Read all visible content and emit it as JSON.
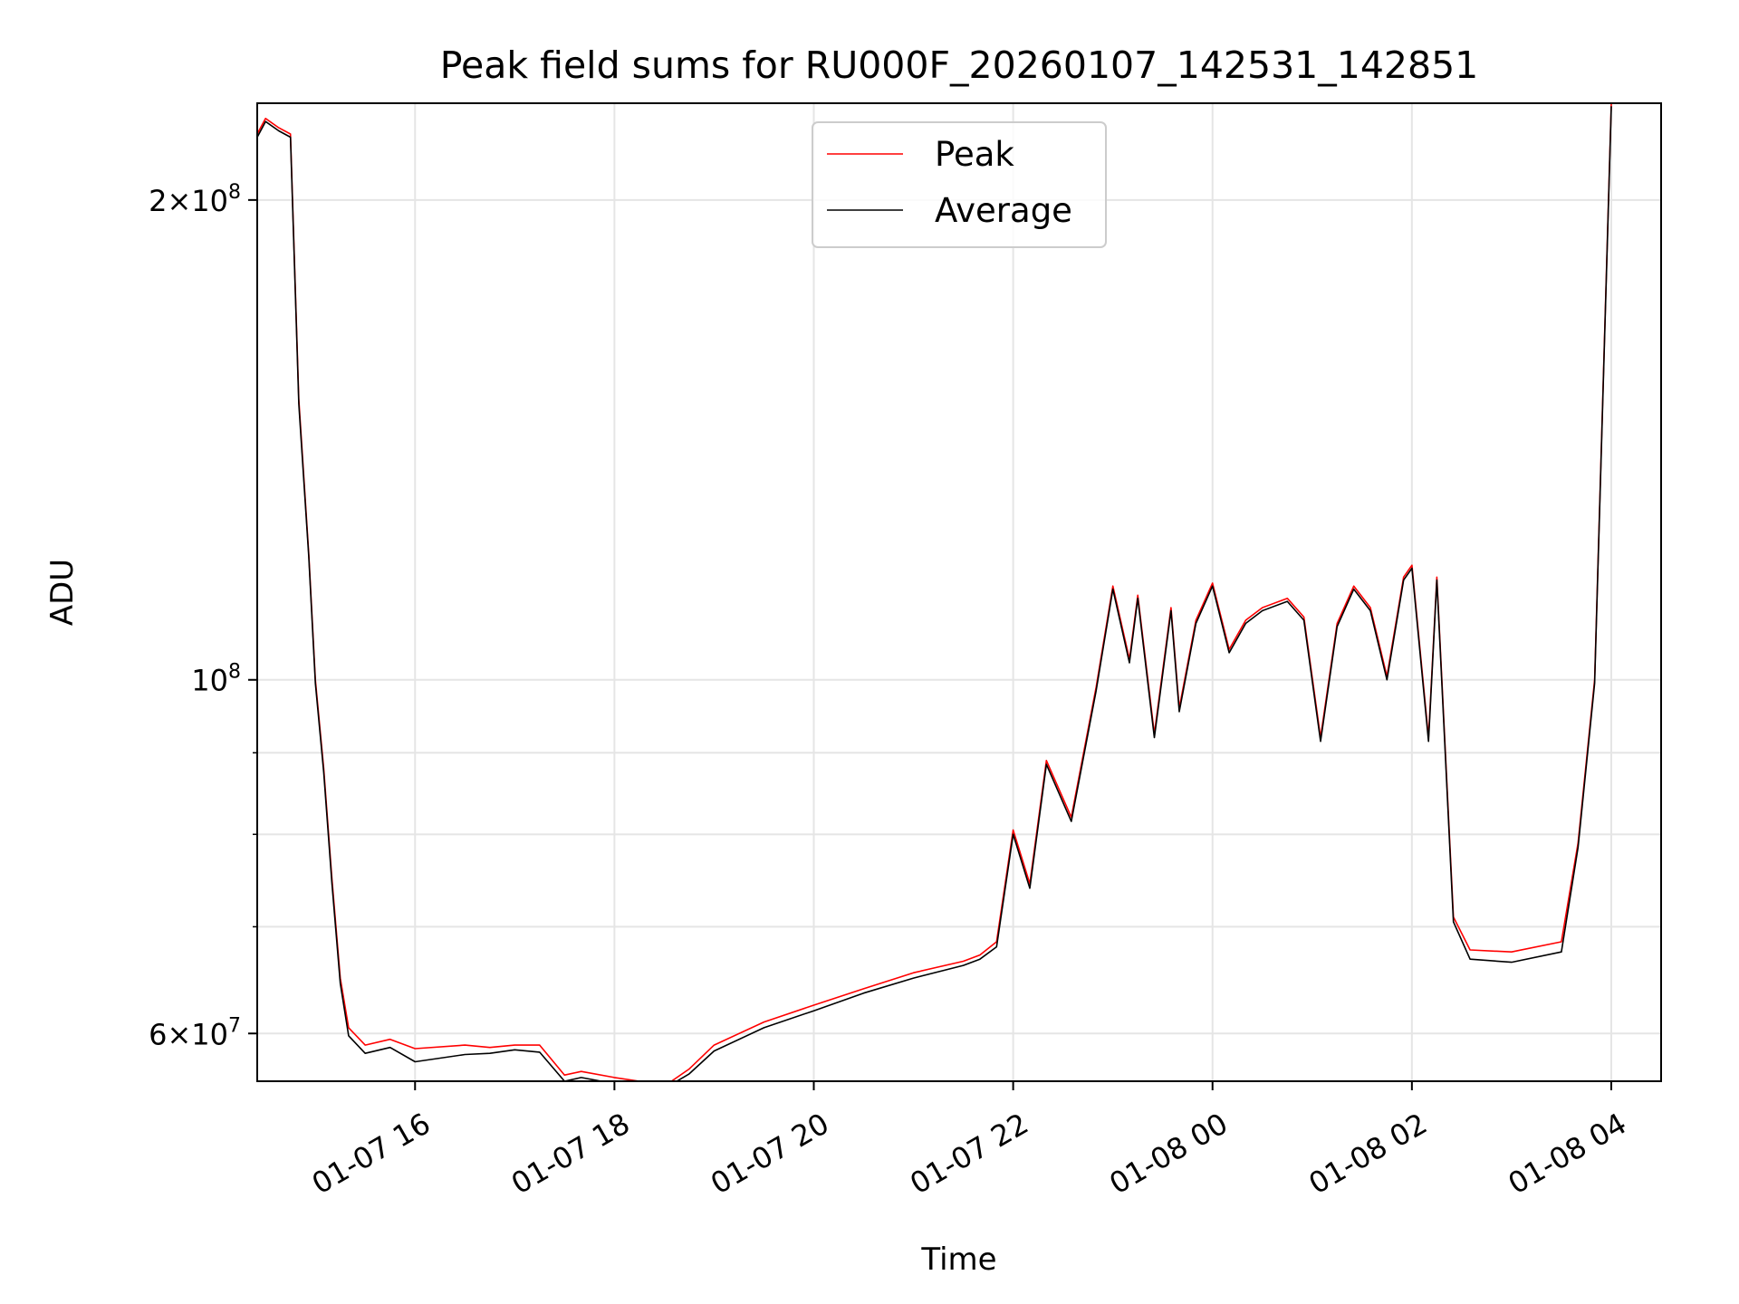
{
  "chart_data": {
    "type": "line",
    "title": "Peak field sums for RU000F_20260107_142531_142851",
    "xlabel": "Time",
    "ylabel": "ADU",
    "yscale": "log",
    "grid": true,
    "legend_position": "upper center",
    "xlim": [
      "2026-01-07 14:25",
      "2026-01-08 04:30"
    ],
    "ylim": [
      56000000,
      230000000
    ],
    "x_ticks": [
      {
        "value": "2026-01-07 16:00",
        "label": "01-07 16"
      },
      {
        "value": "2026-01-07 18:00",
        "label": "01-07 18"
      },
      {
        "value": "2026-01-07 20:00",
        "label": "01-07 20"
      },
      {
        "value": "2026-01-07 22:00",
        "label": "01-07 22"
      },
      {
        "value": "2026-01-08 00:00",
        "label": "01-08 00"
      },
      {
        "value": "2026-01-08 02:00",
        "label": "01-08 02"
      },
      {
        "value": "2026-01-08 04:00",
        "label": "01-08 04"
      }
    ],
    "y_major_ticks": [
      {
        "value": 60000000,
        "mantissa": "6",
        "exponent": "7"
      },
      {
        "value": 100000000,
        "mantissa": "",
        "exponent": "8"
      },
      {
        "value": 200000000,
        "mantissa": "2",
        "exponent": "8"
      }
    ],
    "y_minor_ticks": [
      70000000,
      80000000,
      90000000
    ],
    "series": [
      {
        "name": "Peak",
        "color": "#ff0000",
        "x": [
          "2026-01-07 14:25",
          "2026-01-07 14:30",
          "2026-01-07 14:38",
          "2026-01-07 14:45",
          "2026-01-07 14:50",
          "2026-01-07 14:56",
          "2026-01-07 15:00",
          "2026-01-07 15:05",
          "2026-01-07 15:10",
          "2026-01-07 15:15",
          "2026-01-07 15:20",
          "2026-01-07 15:30",
          "2026-01-07 15:45",
          "2026-01-07 16:00",
          "2026-01-07 16:30",
          "2026-01-07 16:45",
          "2026-01-07 17:00",
          "2026-01-07 17:15",
          "2026-01-07 17:30",
          "2026-01-07 17:40",
          "2026-01-07 18:00",
          "2026-01-07 18:15",
          "2026-01-07 18:30",
          "2026-01-07 18:45",
          "2026-01-07 19:00",
          "2026-01-07 19:30",
          "2026-01-07 20:00",
          "2026-01-07 20:30",
          "2026-01-07 21:00",
          "2026-01-07 21:30",
          "2026-01-07 21:40",
          "2026-01-07 21:50",
          "2026-01-07 22:00",
          "2026-01-07 22:10",
          "2026-01-07 22:20",
          "2026-01-07 22:35",
          "2026-01-07 22:50",
          "2026-01-07 23:00",
          "2026-01-07 23:10",
          "2026-01-07 23:15",
          "2026-01-07 23:25",
          "2026-01-07 23:35",
          "2026-01-07 23:40",
          "2026-01-07 23:50",
          "2026-01-08 00:00",
          "2026-01-08 00:10",
          "2026-01-08 00:20",
          "2026-01-08 00:30",
          "2026-01-08 00:45",
          "2026-01-08 00:55",
          "2026-01-08 01:05",
          "2026-01-08 01:15",
          "2026-01-08 01:25",
          "2026-01-08 01:35",
          "2026-01-08 01:45",
          "2026-01-08 01:55",
          "2026-01-08 02:00",
          "2026-01-08 02:10",
          "2026-01-08 02:15",
          "2026-01-08 02:25",
          "2026-01-08 02:35",
          "2026-01-08 03:00",
          "2026-01-08 03:30",
          "2026-01-08 03:40",
          "2026-01-08 03:50",
          "2026-01-08 04:00"
        ],
        "y": [
          220000000,
          225000000,
          222000000,
          220000000,
          150000000,
          120000000,
          100000000,
          88000000,
          75000000,
          65000000,
          60500000,
          59000000,
          59500000,
          58700000,
          59000000,
          58800000,
          59000000,
          59000000,
          56500000,
          56800000,
          56300000,
          56000000,
          55600000,
          57000000,
          59000000,
          61000000,
          62500000,
          64000000,
          65500000,
          66600000,
          67200000,
          68500000,
          80500000,
          74500000,
          89000000,
          82000000,
          99000000,
          114500000,
          103000000,
          113000000,
          92500000,
          111000000,
          96000000,
          109000000,
          115000000,
          104500000,
          109000000,
          111000000,
          112500000,
          109500000,
          92000000,
          108500000,
          114500000,
          111000000,
          100500000,
          116000000,
          118000000,
          92000000,
          116000000,
          71000000,
          67700000,
          67500000,
          68500000,
          79000000,
          100000000,
          230000000
        ]
      },
      {
        "name": "Average",
        "color": "#000000",
        "x": [
          "2026-01-07 14:25",
          "2026-01-07 14:30",
          "2026-01-07 14:38",
          "2026-01-07 14:45",
          "2026-01-07 14:50",
          "2026-01-07 14:56",
          "2026-01-07 15:00",
          "2026-01-07 15:05",
          "2026-01-07 15:10",
          "2026-01-07 15:15",
          "2026-01-07 15:20",
          "2026-01-07 15:30",
          "2026-01-07 15:45",
          "2026-01-07 16:00",
          "2026-01-07 16:30",
          "2026-01-07 16:45",
          "2026-01-07 17:00",
          "2026-01-07 17:15",
          "2026-01-07 17:30",
          "2026-01-07 17:40",
          "2026-01-07 18:00",
          "2026-01-07 18:15",
          "2026-01-07 18:30",
          "2026-01-07 18:45",
          "2026-01-07 19:00",
          "2026-01-07 19:30",
          "2026-01-07 20:00",
          "2026-01-07 20:30",
          "2026-01-07 21:00",
          "2026-01-07 21:30",
          "2026-01-07 21:40",
          "2026-01-07 21:50",
          "2026-01-07 22:00",
          "2026-01-07 22:10",
          "2026-01-07 22:20",
          "2026-01-07 22:35",
          "2026-01-07 22:50",
          "2026-01-07 23:00",
          "2026-01-07 23:10",
          "2026-01-07 23:15",
          "2026-01-07 23:25",
          "2026-01-07 23:35",
          "2026-01-07 23:40",
          "2026-01-07 23:50",
          "2026-01-08 00:00",
          "2026-01-08 00:10",
          "2026-01-08 00:20",
          "2026-01-08 00:30",
          "2026-01-08 00:45",
          "2026-01-08 00:55",
          "2026-01-08 01:05",
          "2026-01-08 01:15",
          "2026-01-08 01:25",
          "2026-01-08 01:35",
          "2026-01-08 01:45",
          "2026-01-08 01:55",
          "2026-01-08 02:00",
          "2026-01-08 02:10",
          "2026-01-08 02:15",
          "2026-01-08 02:25",
          "2026-01-08 02:35",
          "2026-01-08 03:00",
          "2026-01-08 03:30",
          "2026-01-08 03:40",
          "2026-01-08 03:50",
          "2026-01-08 04:00"
        ],
        "y": [
          219000000,
          224000000,
          221000000,
          219000000,
          149000000,
          119500000,
          99500000,
          87500000,
          74500000,
          64500000,
          59800000,
          58300000,
          58800000,
          57600000,
          58200000,
          58300000,
          58600000,
          58400000,
          56000000,
          56300000,
          55800000,
          55600000,
          55400000,
          56600000,
          58500000,
          60500000,
          62000000,
          63600000,
          65000000,
          66200000,
          66800000,
          68000000,
          80000000,
          74000000,
          88500000,
          81500000,
          98500000,
          114000000,
          102500000,
          112500000,
          92000000,
          110500000,
          95500000,
          108500000,
          114500000,
          104000000,
          108500000,
          110500000,
          112000000,
          109000000,
          91500000,
          108000000,
          114000000,
          110500000,
          100000000,
          115500000,
          117500000,
          91500000,
          115500000,
          70500000,
          66800000,
          66500000,
          67500000,
          78500000,
          99500000,
          229000000
        ]
      }
    ]
  }
}
